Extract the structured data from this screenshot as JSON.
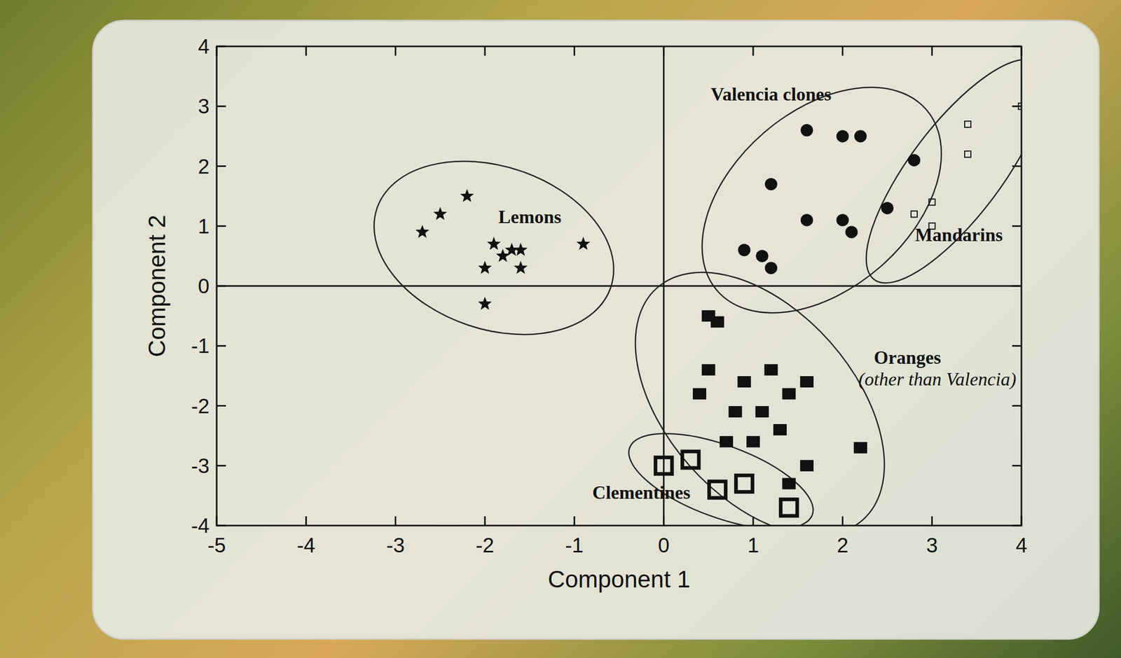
{
  "chart_data": {
    "type": "scatter",
    "x_label": "Component 1",
    "y_label": "Component 2",
    "xlim": [
      -5,
      4
    ],
    "ylim": [
      -4,
      4
    ],
    "xticks": [
      -5,
      -4,
      -3,
      -2,
      -1,
      0,
      1,
      2,
      3,
      4
    ],
    "yticks": [
      -4,
      -3,
      -2,
      -1,
      0,
      1,
      2,
      3,
      4
    ],
    "grid": false,
    "series": [
      {
        "name": "Lemons",
        "color": "#111111",
        "marker": "star",
        "x": [
          -2.5,
          -2.2,
          -2.7,
          -1.9,
          -1.8,
          -1.6,
          -2.0,
          -1.6,
          -0.9,
          -2.0,
          -1.7
        ],
        "values": [
          1.2,
          1.5,
          0.9,
          0.7,
          0.5,
          0.6,
          0.3,
          0.3,
          0.7,
          -0.3,
          0.6
        ]
      },
      {
        "name": "Valencia clones",
        "color": "#111111",
        "marker": "circle",
        "x": [
          1.6,
          2.0,
          2.2,
          2.8,
          1.2,
          2.5,
          1.6,
          2.0,
          2.1,
          0.9,
          1.1,
          1.2
        ],
        "values": [
          2.6,
          2.5,
          2.5,
          2.1,
          1.7,
          1.3,
          1.1,
          1.1,
          0.9,
          0.6,
          0.5,
          0.3
        ]
      },
      {
        "name": "Mandarins",
        "color": "#111111",
        "marker": "open-square",
        "x": [
          3.4,
          4.0,
          3.4,
          3.0,
          2.8,
          3.0
        ],
        "values": [
          2.7,
          3.0,
          2.2,
          1.4,
          1.2,
          1.0
        ]
      },
      {
        "name": "Oranges (other than Valencia)",
        "color": "#111111",
        "marker": "square",
        "x": [
          0.5,
          0.6,
          0.5,
          0.4,
          0.9,
          1.2,
          0.8,
          1.1,
          1.4,
          1.6,
          0.7,
          1.0,
          1.3,
          2.2,
          1.6,
          1.4
        ],
        "values": [
          -0.5,
          -0.6,
          -1.4,
          -1.8,
          -1.6,
          -1.4,
          -2.1,
          -2.1,
          -1.8,
          -1.6,
          -2.6,
          -2.6,
          -2.4,
          -2.7,
          -3.0,
          -3.3
        ]
      },
      {
        "name": "Clementines",
        "color": "#111111",
        "marker": "big-open-square",
        "x": [
          0.0,
          0.3,
          0.6,
          0.9,
          1.4
        ],
        "values": [
          -3.0,
          -2.9,
          -3.4,
          -3.3,
          -3.7
        ]
      }
    ]
  }
}
